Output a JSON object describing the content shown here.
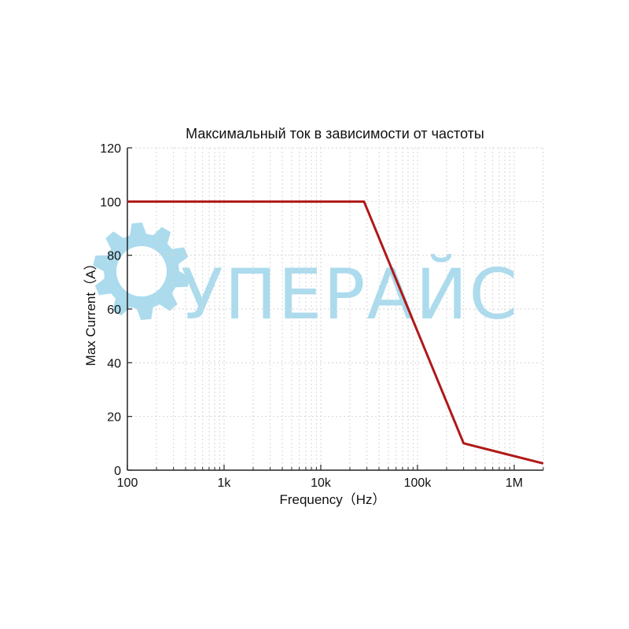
{
  "chart_data": {
    "type": "line",
    "title": "Максимальный ток в зависимости от частоты",
    "xlabel": "Frequency（Hz）",
    "ylabel": "Max Current（A）",
    "x_scale": "log",
    "xlim": [
      100,
      2000000
    ],
    "ylim": [
      0,
      120
    ],
    "x_ticks": [
      100,
      1000,
      10000,
      100000,
      1000000
    ],
    "x_tick_labels": [
      "100",
      "1k",
      "10k",
      "100k",
      "1M"
    ],
    "y_ticks": [
      0,
      20,
      40,
      60,
      80,
      100,
      120
    ],
    "y_tick_labels": [
      "0",
      "20",
      "40",
      "60",
      "80",
      "100",
      "120"
    ],
    "grid": true,
    "series": [
      {
        "color": "#b01818",
        "x": [
          100,
          28000,
          300000,
          2000000
        ],
        "y": [
          100,
          100,
          10,
          2.5
        ]
      }
    ]
  },
  "watermark": {
    "text": "УПЕРАЙС",
    "color": "#8fcfe8",
    "icon": "gear-icon"
  }
}
